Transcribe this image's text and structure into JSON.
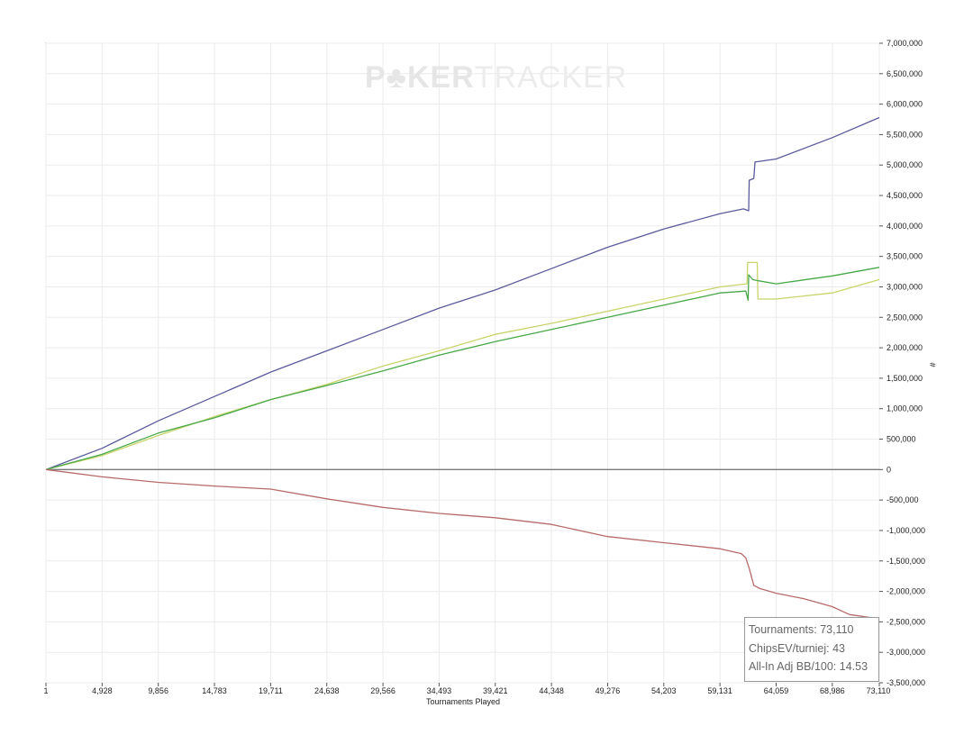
{
  "chart_data": {
    "type": "line",
    "watermark": {
      "bold": "P♣KER",
      "light": "TRACKER"
    },
    "xlabel": "Tournaments Played",
    "ylabel": "#",
    "x_ticks": [
      "1",
      "4,928",
      "9,856",
      "14,783",
      "19,711",
      "24,638",
      "29,566",
      "34,493",
      "39,421",
      "44,348",
      "49,276",
      "54,203",
      "59,131",
      "64,059",
      "68,986",
      "73,110"
    ],
    "xlim": [
      1,
      73110
    ],
    "ylim": [
      -3500000,
      7000000
    ],
    "y_ticks": [
      "7,000,000",
      "6,500,000",
      "6,000,000",
      "5,500,000",
      "5,000,000",
      "4,500,000",
      "4,000,000",
      "3,500,000",
      "3,000,000",
      "2,500,000",
      "2,000,000",
      "1,500,000",
      "1,000,000",
      "500,000",
      "0",
      "-500,000",
      "-1,000,000",
      "-1,500,000",
      "-2,000,000",
      "-2,500,000",
      "-3,000,000",
      "-3,500,000"
    ],
    "y_tick_values": [
      7000000,
      6500000,
      6000000,
      5500000,
      5000000,
      4500000,
      4000000,
      3500000,
      3000000,
      2500000,
      2000000,
      1500000,
      1000000,
      500000,
      0,
      -500000,
      -1000000,
      -1500000,
      -2000000,
      -2500000,
      -3000000,
      -3500000
    ],
    "grid": true,
    "y_axis_side": "right",
    "series": [
      {
        "color": "#5b5b9c",
        "x": [
          1,
          4928,
          9856,
          14783,
          19711,
          24638,
          29566,
          34493,
          39421,
          44348,
          49276,
          54203,
          59131,
          61200,
          61650,
          61700,
          62100,
          62200,
          64059,
          68986,
          73110
        ],
        "y": [
          0,
          350000,
          800000,
          1200000,
          1600000,
          1950000,
          2300000,
          2650000,
          2950000,
          3300000,
          3650000,
          3950000,
          4200000,
          4280000,
          4250000,
          4750000,
          4780000,
          5050000,
          5100000,
          5450000,
          5780000
        ]
      },
      {
        "color": "#c8d46a",
        "x": [
          1,
          4928,
          9856,
          14783,
          19711,
          24638,
          29566,
          34493,
          39421,
          44348,
          49276,
          54203,
          59131,
          61500,
          61560,
          62400,
          62460,
          64059,
          68986,
          73110
        ],
        "y": [
          0,
          230000,
          560000,
          870000,
          1150000,
          1400000,
          1700000,
          1950000,
          2220000,
          2400000,
          2600000,
          2800000,
          3000000,
          3050000,
          3400000,
          3400000,
          2800000,
          2800000,
          2900000,
          3120000
        ]
      },
      {
        "color": "#48a848",
        "x": [
          1,
          4928,
          9856,
          14783,
          19711,
          24638,
          29566,
          34493,
          39421,
          44348,
          49276,
          54203,
          59131,
          61400,
          61600,
          61650,
          62000,
          62500,
          64059,
          68986,
          73110
        ],
        "y": [
          0,
          250000,
          600000,
          850000,
          1150000,
          1380000,
          1620000,
          1880000,
          2100000,
          2300000,
          2500000,
          2700000,
          2900000,
          2930000,
          2780000,
          3200000,
          3120000,
          3100000,
          3050000,
          3180000,
          3320000
        ]
      },
      {
        "color": "#b86a6a",
        "x": [
          1,
          4928,
          9856,
          14783,
          19711,
          24638,
          29566,
          34493,
          39421,
          44348,
          49276,
          54203,
          59131,
          61000,
          61400,
          61700,
          62100,
          62600,
          64059,
          66500,
          68986,
          70500,
          73110
        ],
        "y": [
          0,
          -120000,
          -210000,
          -270000,
          -320000,
          -480000,
          -620000,
          -720000,
          -790000,
          -900000,
          -1100000,
          -1200000,
          -1300000,
          -1380000,
          -1450000,
          -1620000,
          -1900000,
          -1950000,
          -2030000,
          -2120000,
          -2250000,
          -2380000,
          -2450000
        ]
      }
    ]
  },
  "stats": {
    "tournaments": "Tournaments: 73,110",
    "chips_ev": "ChipsEV/turniej: 43",
    "allin": "All-In Adj BB/100: 14.53"
  }
}
